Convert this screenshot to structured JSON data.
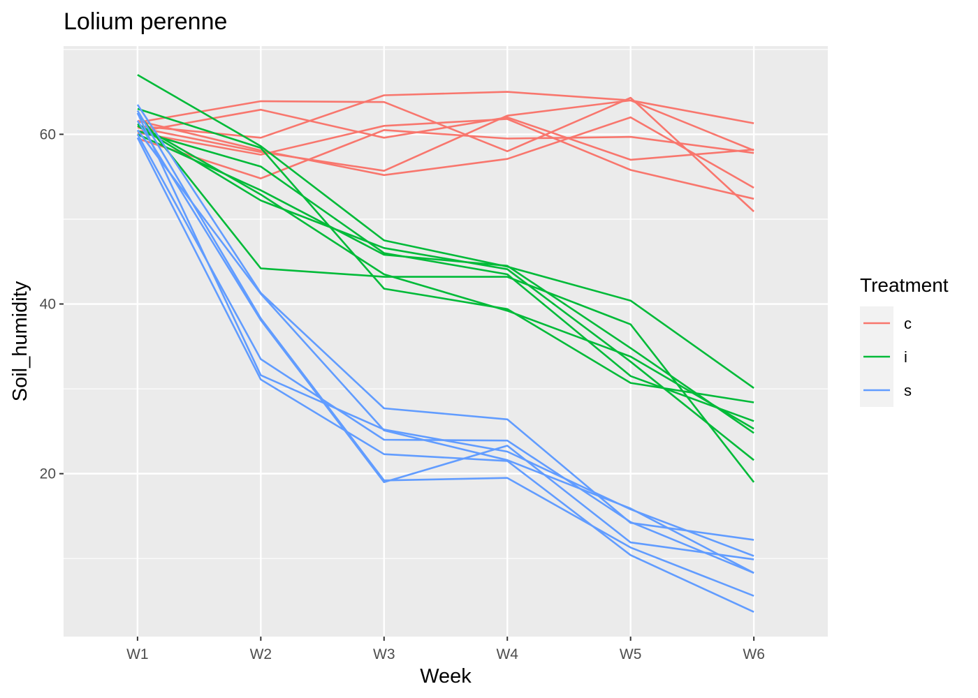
{
  "chart_data": {
    "type": "line",
    "title": "Lolium perenne",
    "xlabel": "Week",
    "ylabel": "Soil_humidity",
    "categories": [
      "W1",
      "W2",
      "W3",
      "W4",
      "W5",
      "W6"
    ],
    "y_ticks": [
      20,
      40,
      60
    ],
    "ylim": [
      0.8,
      70.4
    ],
    "grid": true,
    "legend": {
      "title": "Treatment",
      "position": "right",
      "entries": [
        {
          "label": "c",
          "color": "#F8766D"
        },
        {
          "label": "i",
          "color": "#00BA38"
        },
        {
          "label": "s",
          "color": "#619CFF"
        }
      ]
    },
    "series": [
      {
        "group": "c",
        "color": "#F8766D",
        "values": [
          61.4,
          63.9,
          63.8,
          58.0,
          64.3,
          50.9
        ]
      },
      {
        "group": "c",
        "color": "#F8766D",
        "values": [
          60.3,
          62.9,
          59.6,
          62.0,
          57.0,
          58.2
        ]
      },
      {
        "group": "c",
        "color": "#F8766D",
        "values": [
          61.0,
          59.6,
          64.6,
          65.0,
          64.0,
          61.3
        ]
      },
      {
        "group": "c",
        "color": "#F8766D",
        "values": [
          59.5,
          54.8,
          60.5,
          59.5,
          59.7,
          57.8
        ]
      },
      {
        "group": "c",
        "color": "#F8766D",
        "values": [
          61.6,
          58.1,
          55.2,
          57.1,
          62.0,
          53.7
        ]
      },
      {
        "group": "c",
        "color": "#F8766D",
        "values": [
          60.2,
          57.6,
          61.0,
          61.8,
          55.8,
          52.4
        ]
      },
      {
        "group": "c",
        "color": "#F8766D",
        "values": [
          60.8,
          57.9,
          55.7,
          62.2,
          64.0,
          58.1
        ]
      },
      {
        "group": "i",
        "color": "#00BA38",
        "values": [
          67.0,
          58.6,
          47.5,
          44.4,
          40.4,
          30.1
        ]
      },
      {
        "group": "i",
        "color": "#00BA38",
        "values": [
          62.5,
          44.2,
          43.2,
          43.2,
          37.6,
          19.0
        ]
      },
      {
        "group": "i",
        "color": "#00BA38",
        "values": [
          61.0,
          52.2,
          46.6,
          44.1,
          33.2,
          21.6
        ]
      },
      {
        "group": "i",
        "color": "#00BA38",
        "values": [
          63.0,
          58.4,
          41.8,
          39.4,
          30.7,
          28.4
        ]
      },
      {
        "group": "i",
        "color": "#00BA38",
        "values": [
          60.0,
          53.4,
          45.8,
          44.5,
          34.8,
          24.8
        ]
      },
      {
        "group": "i",
        "color": "#00BA38",
        "values": [
          60.4,
          56.2,
          46.0,
          43.5,
          31.5,
          26.2
        ]
      },
      {
        "group": "i",
        "color": "#00BA38",
        "values": [
          61.2,
          52.9,
          43.5,
          39.2,
          33.8,
          25.3
        ]
      },
      {
        "group": "s",
        "color": "#619CFF",
        "values": [
          63.5,
          41.3,
          27.7,
          26.4,
          14.2,
          12.2
        ]
      },
      {
        "group": "s",
        "color": "#619CFF",
        "values": [
          60.0,
          33.5,
          24.0,
          23.9,
          14.3,
          8.3
        ]
      },
      {
        "group": "s",
        "color": "#619CFF",
        "values": [
          62.5,
          31.6,
          25.2,
          22.6,
          15.8,
          10.3
        ]
      },
      {
        "group": "s",
        "color": "#619CFF",
        "values": [
          59.6,
          31.1,
          22.3,
          21.5,
          10.4,
          3.7
        ]
      },
      {
        "group": "s",
        "color": "#619CFF",
        "values": [
          61.6,
          38.1,
          19.0,
          23.3,
          11.9,
          9.9
        ]
      },
      {
        "group": "s",
        "color": "#619CFF",
        "values": [
          62.8,
          38.3,
          19.2,
          19.5,
          11.3,
          5.6
        ]
      },
      {
        "group": "s",
        "color": "#619CFF",
        "values": [
          60.5,
          41.2,
          25.1,
          21.6,
          15.9,
          8.3
        ]
      }
    ]
  }
}
